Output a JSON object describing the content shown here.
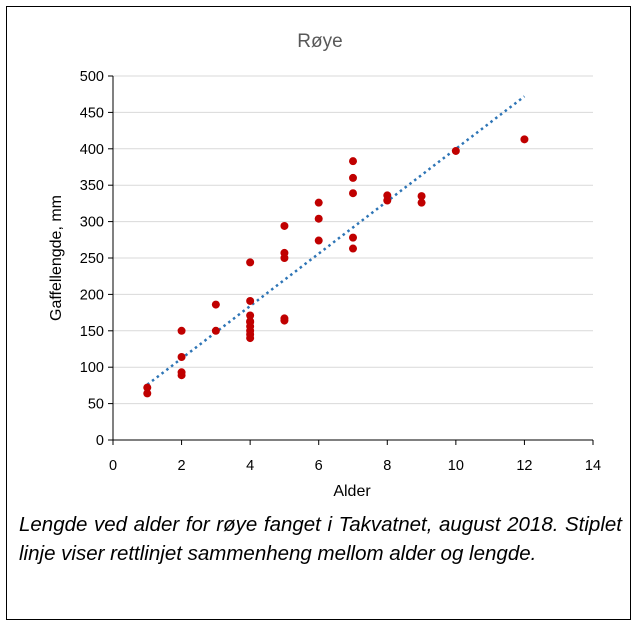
{
  "chart_data": {
    "type": "scatter",
    "title": "Røye",
    "xlabel": "Alder",
    "ylabel": "Gaffellengde, mm",
    "xlim": [
      0,
      14
    ],
    "ylim": [
      0,
      500
    ],
    "x_ticks": [
      0,
      2,
      4,
      6,
      8,
      10,
      12,
      14
    ],
    "y_ticks": [
      0,
      50,
      100,
      150,
      200,
      250,
      300,
      350,
      400,
      450,
      500
    ],
    "grid": "horizontal",
    "point_color": "#C00000",
    "trendline_color": "#2E75B6",
    "series": [
      {
        "x": [
          1,
          1,
          2,
          2,
          2,
          2,
          3,
          3,
          4,
          4,
          4,
          4,
          4,
          4,
          4,
          4,
          4,
          5,
          5,
          5,
          5,
          5,
          6,
          6,
          6,
          7,
          7,
          7,
          7,
          7,
          8,
          8,
          9,
          9,
          10,
          12
        ],
        "y": [
          72,
          64,
          150,
          114,
          93,
          89,
          186,
          150,
          244,
          191,
          171,
          163,
          156,
          150,
          145,
          140,
          162,
          294,
          257,
          250,
          167,
          164,
          326,
          304,
          274,
          383,
          360,
          339,
          278,
          263,
          336,
          329,
          335,
          326,
          397,
          413
        ]
      }
    ],
    "trendline": {
      "style": "dotted",
      "x": [
        1,
        12
      ],
      "y": [
        76,
        472
      ]
    }
  },
  "caption": "Lengde ved alder for røye fanget i Takvatnet, august 2018. Stiplet linje viser rettlinjet sammenheng mellom alder og lengde."
}
